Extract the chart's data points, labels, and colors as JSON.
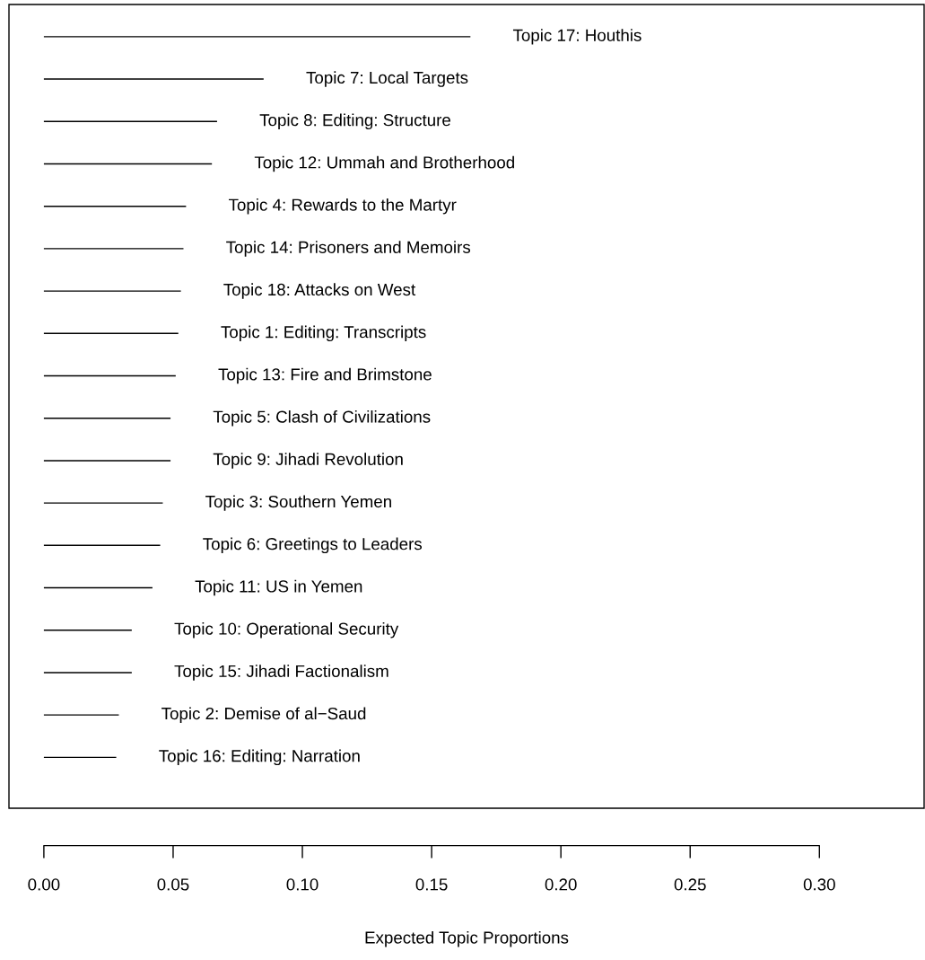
{
  "chart_data": {
    "type": "bar",
    "orientation": "horizontal",
    "categories": [
      "Topic 17: Houthis",
      "Topic 7: Local Targets",
      "Topic 8: Editing: Structure",
      "Topic 12: Ummah and Brotherhood",
      "Topic 4: Rewards to the Martyr",
      "Topic 14: Prisoners and Memoirs",
      "Topic 18: Attacks on West",
      "Topic 1: Editing: Transcripts",
      "Topic 13: Fire and Brimstone",
      "Topic 5: Clash of Civilizations",
      "Topic 9: Jihadi Revolution",
      "Topic 3: Southern Yemen",
      "Topic 6: Greetings to Leaders",
      "Topic 11: US in Yemen",
      "Topic 10: Operational Security",
      "Topic 15: Jihadi Factionalism",
      "Topic 2: Demise of al−Saud",
      "Topic 16: Editing: Narration"
    ],
    "values": [
      0.165,
      0.085,
      0.067,
      0.065,
      0.055,
      0.054,
      0.053,
      0.052,
      0.051,
      0.049,
      0.049,
      0.046,
      0.045,
      0.042,
      0.034,
      0.034,
      0.029,
      0.028
    ],
    "color": "#000000",
    "xlabel": "Expected Topic Proportions",
    "xlim": [
      -0.0135,
      0.3405
    ],
    "xticks": [
      {
        "value": 0,
        "label": "0.00"
      },
      {
        "value": 0.05,
        "label": "0.05"
      },
      {
        "value": 0.1,
        "label": "0.10"
      },
      {
        "value": 0.15,
        "label": "0.15"
      },
      {
        "value": 0.2,
        "label": "0.20"
      },
      {
        "value": 0.25,
        "label": "0.25"
      },
      {
        "value": 0.3,
        "label": "0.30"
      }
    ],
    "tick_labels": "x",
    "grid": false,
    "legend": false
  }
}
